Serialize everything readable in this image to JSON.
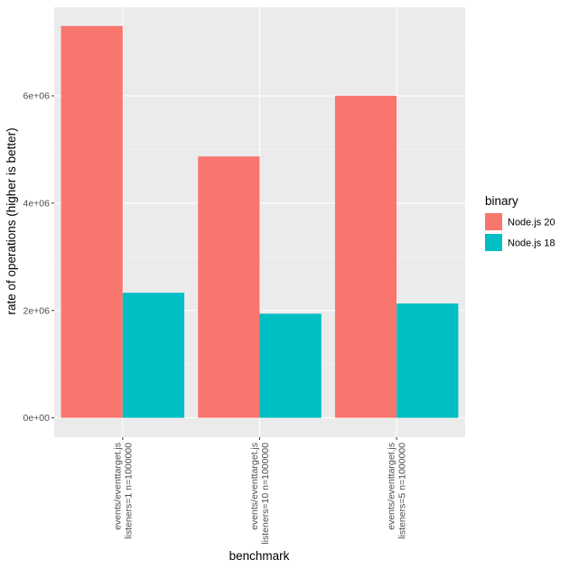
{
  "chart_data": {
    "type": "bar",
    "categories": [
      [
        "events/eventtarget.js",
        "listeners=1 n=1000000"
      ],
      [
        "events/eventtarget.js",
        "listeners=10 n=1000000"
      ],
      [
        "events/eventtarget.js",
        "listeners=5 n=1000000"
      ]
    ],
    "series": [
      {
        "name": "Node.js 20",
        "color": "#F8766D",
        "values": [
          7300000,
          4870000,
          6000000
        ]
      },
      {
        "name": "Node.js 18",
        "color": "#00BFC4",
        "values": [
          2330000,
          1940000,
          2130000
        ]
      }
    ],
    "xlabel": "benchmark",
    "ylabel": "rate of operations (higher is better)",
    "ylim": [
      -360000,
      7650000
    ],
    "yticks": [
      0,
      2000000,
      4000000,
      6000000
    ],
    "ytick_labels": [
      "0e+00",
      "2e+06",
      "4e+06",
      "6e+06"
    ],
    "legend_title": "binary",
    "legend_position": "right",
    "grid": true,
    "panel_background": "#EBEBEB"
  }
}
